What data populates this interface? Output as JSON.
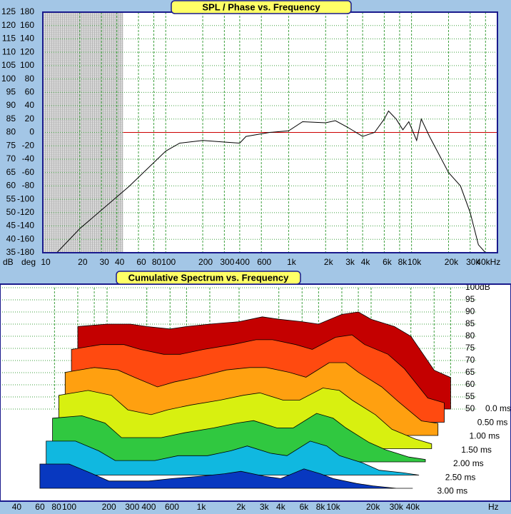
{
  "chart_data": [
    {
      "type": "line",
      "title": "SPL / Phase vs. Frequency",
      "x": [
        13,
        20,
        50,
        100,
        130,
        200,
        300,
        400,
        450,
        700,
        1000,
        1300,
        2000,
        2400,
        3000,
        4000,
        5000,
        6000,
        6500,
        7500,
        8500,
        9500,
        11000,
        12000,
        14000,
        20000,
        25000,
        30000,
        35000,
        40000
      ],
      "values": [
        35,
        44,
        59.7,
        73,
        76,
        77,
        76.4,
        76,
        78.5,
        80,
        80.6,
        84,
        83.6,
        84.4,
        82,
        78.5,
        80,
        85,
        88,
        85,
        81,
        84,
        77,
        85,
        78.5,
        65,
        60,
        50,
        38,
        35
      ],
      "color": "#000000",
      "log_x": true,
      "grid": true,
      "grid_color": "#3fa03f",
      "xlim": [
        10,
        50000
      ],
      "xticks": [
        10,
        20,
        30,
        40,
        60,
        80,
        100,
        200,
        300,
        400,
        600,
        {
          "value": 1000,
          "label": "1k"
        },
        {
          "value": 2000,
          "label": "2k"
        },
        {
          "value": 3000,
          "label": "3k"
        },
        {
          "value": 4000,
          "label": "4k"
        },
        {
          "value": 6000,
          "label": "6k"
        },
        {
          "value": 8000,
          "label": "8k"
        },
        {
          "value": 10000,
          "label": "10k"
        },
        {
          "value": 20000,
          "label": "20k"
        },
        {
          "value": 30000,
          "label": "30k"
        },
        {
          "value": 40000,
          "label": "40kHz"
        }
      ],
      "ylim": [
        35,
        125
      ],
      "yticks": [
        35,
        40,
        45,
        50,
        55,
        60,
        65,
        70,
        75,
        80,
        85,
        90,
        95,
        100,
        105,
        110,
        115,
        120,
        125
      ],
      "y_unit": "dB",
      "y2lim": [
        -180,
        180
      ],
      "y2ticks": [
        -180,
        -160,
        -140,
        -120,
        -100,
        -80,
        -60,
        -40,
        -20,
        0,
        20,
        40,
        60,
        80,
        100,
        120,
        140,
        160,
        180
      ],
      "y2_unit": "deg",
      "reference_line": 80,
      "reference_color": "#cc0000",
      "shaded_range": [
        10,
        45
      ]
    },
    {
      "type": "waterfall",
      "title": "Cumulative Spectrum vs. Frequency",
      "x": [
        60,
        100,
        150,
        200,
        300,
        400,
        600,
        1000,
        1500,
        2000,
        3000,
        4000,
        6000,
        8000,
        10000,
        15000,
        20000,
        30000,
        40000
      ],
      "series": [
        {
          "time": 0,
          "color": "#c40000",
          "values": [
            84,
            85,
            85,
            84,
            83,
            84,
            85,
            86,
            88,
            87,
            86,
            85,
            89,
            90,
            87,
            84,
            80,
            66,
            63
          ]
        },
        {
          "time": 0.5,
          "color": "#ff4a10",
          "values": [
            80,
            82,
            82,
            80,
            78,
            78,
            80,
            82,
            84,
            84,
            82,
            80,
            85,
            86,
            82,
            78,
            72,
            60,
            58
          ]
        },
        {
          "time": 1,
          "color": "#ffa010",
          "values": [
            76,
            78,
            77,
            74,
            70,
            72,
            74,
            77,
            78,
            78,
            76,
            74,
            80,
            80,
            76,
            70,
            64,
            56,
            55
          ]
        },
        {
          "time": 1.5,
          "color": "#d8f010",
          "values": [
            72,
            74,
            72,
            66,
            64,
            66,
            68,
            70,
            72,
            73,
            70,
            70,
            75,
            74,
            70,
            64,
            58,
            54,
            52
          ]
        },
        {
          "time": 2,
          "color": "#30c840",
          "values": [
            68,
            69,
            66,
            60,
            60,
            60,
            62,
            64,
            66,
            67,
            64,
            64,
            70,
            68,
            64,
            58,
            55,
            52,
            51
          ]
        },
        {
          "time": 2.5,
          "color": "#10b8e0",
          "values": [
            64,
            64,
            60,
            56,
            56,
            56,
            58,
            58,
            60,
            62,
            59,
            58,
            64,
            62,
            58,
            55,
            52,
            51,
            50
          ]
        },
        {
          "time": 3,
          "color": "#0838c0",
          "values": [
            60,
            60,
            56,
            53,
            53,
            53,
            54,
            55,
            56,
            57,
            55,
            54,
            58,
            56,
            54,
            52,
            51,
            50,
            50
          ]
        }
      ],
      "log_x": true,
      "grid": true,
      "grid_color": "#3fa03f",
      "xticks": [
        40,
        60,
        80,
        100,
        200,
        300,
        400,
        600,
        {
          "value": 1000,
          "label": "1k"
        },
        {
          "value": 2000,
          "label": "2k"
        },
        {
          "value": 3000,
          "label": "3k"
        },
        {
          "value": 4000,
          "label": "4k"
        },
        {
          "value": 6000,
          "label": "6k"
        },
        {
          "value": 8000,
          "label": "8k"
        },
        {
          "value": 10000,
          "label": "10k"
        },
        {
          "value": 20000,
          "label": "20k"
        },
        {
          "value": 30000,
          "label": "30k"
        },
        {
          "value": 40000,
          "label": "40k"
        }
      ],
      "x_unit": "Hz",
      "ylim": [
        50,
        100
      ],
      "yticks": [
        {
          "value": 100,
          "label": "100dB"
        },
        95,
        90,
        85,
        80,
        75,
        70,
        65,
        60,
        55,
        50
      ],
      "zlim": [
        0,
        3
      ],
      "zticks": [
        {
          "value": 0,
          "label": "0.0 ms"
        },
        {
          "value": 0.5,
          "label": "0.50 ms"
        },
        {
          "value": 1,
          "label": "1.00 ms"
        },
        {
          "value": 1.5,
          "label": "1.50 ms"
        },
        {
          "value": 2,
          "label": "2.00 ms"
        },
        {
          "value": 2.5,
          "label": "2.50 ms"
        },
        {
          "value": 3,
          "label": "3.00 ms"
        }
      ]
    }
  ]
}
